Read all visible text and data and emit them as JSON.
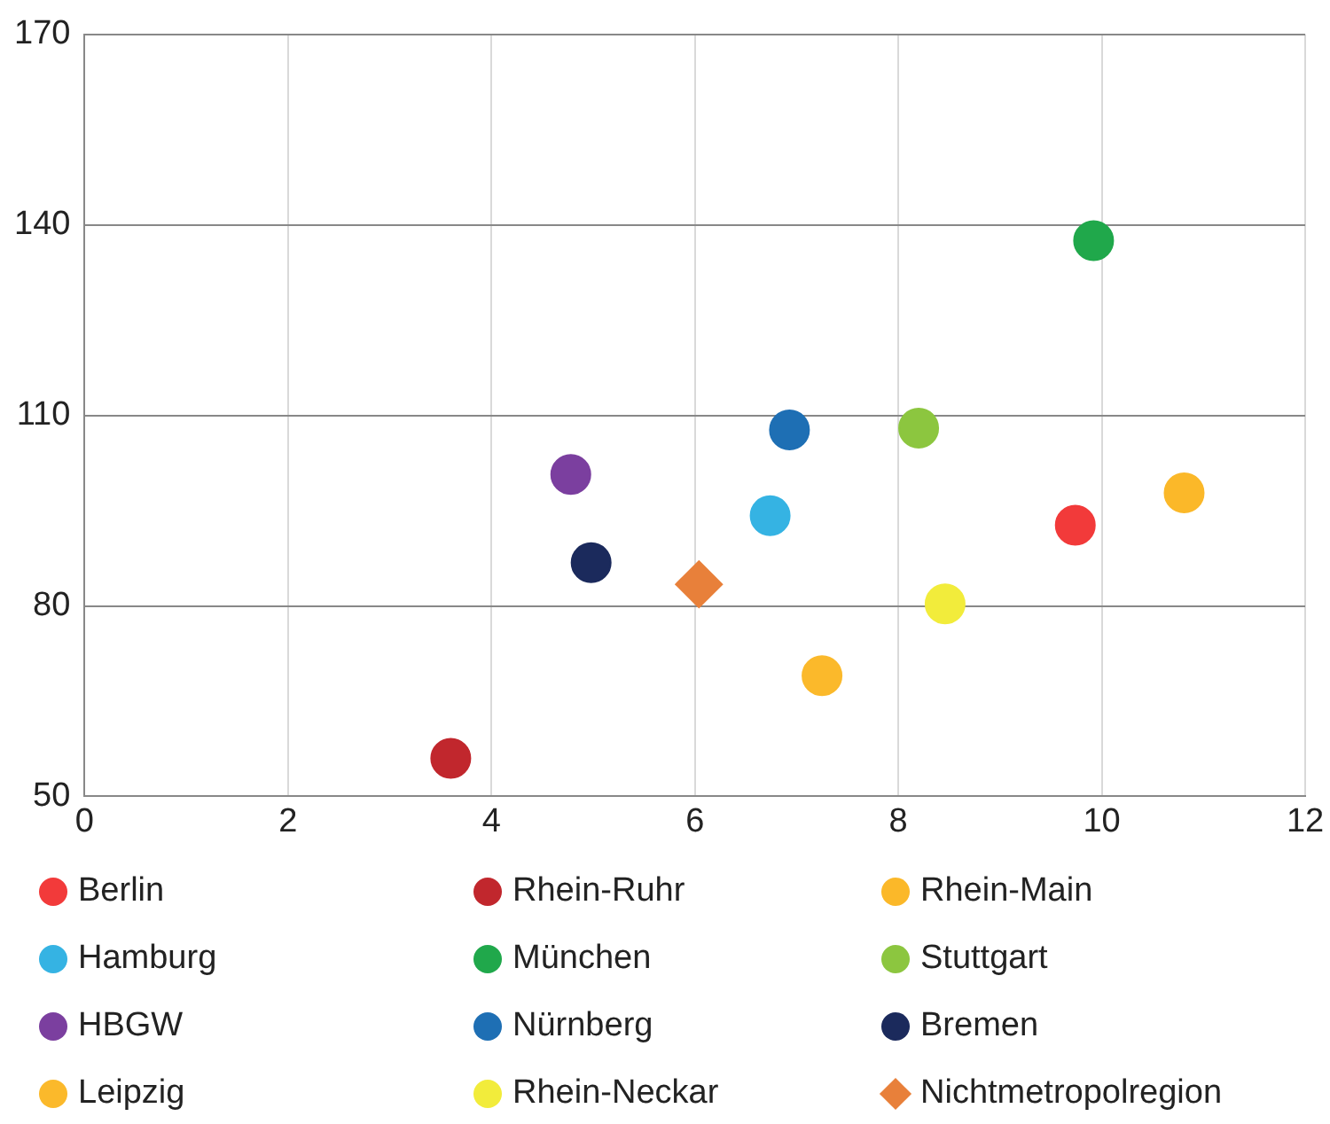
{
  "chart_data": {
    "type": "scatter",
    "xlim": [
      0,
      12
    ],
    "xticks": [
      0,
      2,
      4,
      6,
      8,
      10,
      12
    ],
    "ylim": [
      50,
      170
    ],
    "yticks": [
      50,
      80,
      110,
      140,
      170
    ],
    "grid": true,
    "legend": "bottom",
    "marker": "circle",
    "series": [
      {
        "name": "Berlin",
        "color": "#f23a3a",
        "x": [
          9.74
        ],
        "values": [
          92.7
        ]
      },
      {
        "name": "Rhein-Ruhr",
        "color": "#c1272d",
        "x": [
          3.6
        ],
        "values": [
          56
        ]
      },
      {
        "name": "Rhein-Main",
        "color": "#fbb829",
        "x": [
          10.81
        ],
        "values": [
          97.8
        ]
      },
      {
        "name": "Hamburg",
        "color": "#35b3e3",
        "x": [
          6.74
        ],
        "values": [
          94.2
        ]
      },
      {
        "name": "München",
        "color": "#20a84b",
        "x": [
          9.92
        ],
        "values": [
          137.5
        ]
      },
      {
        "name": "Stuttgart",
        "color": "#8cc63f",
        "x": [
          8.2
        ],
        "values": [
          108
        ]
      },
      {
        "name": "HBGW",
        "color": "#7b3f9f",
        "x": [
          4.78
        ],
        "values": [
          100.7
        ]
      },
      {
        "name": "Nürnberg",
        "color": "#1e6fb4",
        "x": [
          6.93
        ],
        "values": [
          107.7
        ]
      },
      {
        "name": "Bremen",
        "color": "#1b2a5c",
        "x": [
          4.98
        ],
        "values": [
          86.8
        ]
      },
      {
        "name": "Leipzig",
        "color": "#fbb92b",
        "x": [
          7.25
        ],
        "values": [
          69
        ]
      },
      {
        "name": "Rhein-Neckar",
        "color": "#f2ec3b",
        "x": [
          8.46
        ],
        "values": [
          80.3
        ]
      },
      {
        "name": "Nichtmetropolregion",
        "color": "#e8803a",
        "x": [
          6.04
        ],
        "values": [
          83.4
        ],
        "marker": "diamond"
      }
    ]
  }
}
